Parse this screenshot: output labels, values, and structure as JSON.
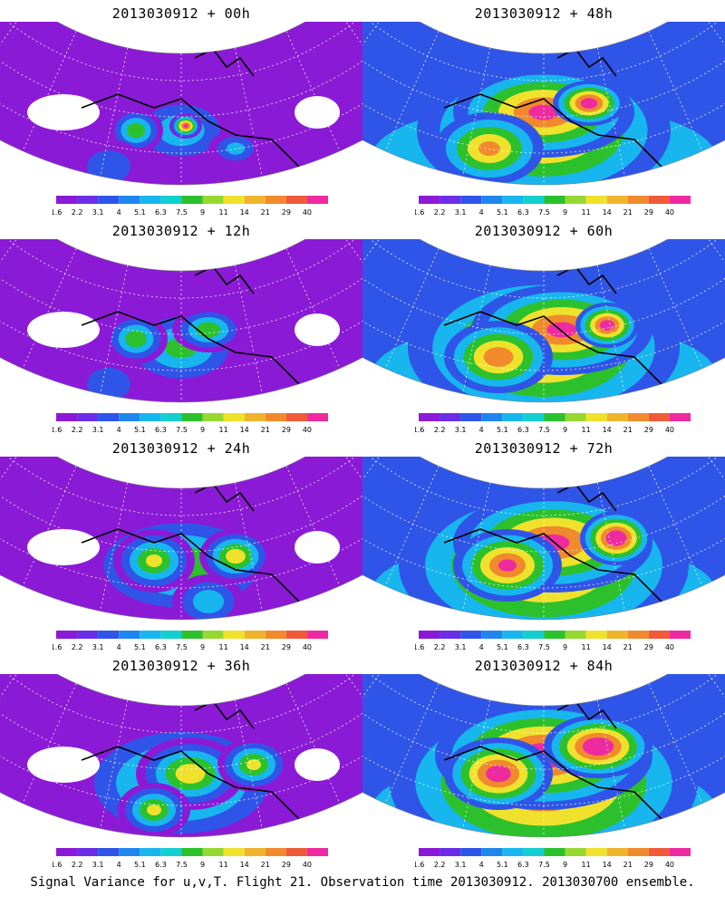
{
  "panels": [
    {
      "title": "2013030912 + 00h",
      "forecast_hour": 0
    },
    {
      "title": "2013030912 + 48h",
      "forecast_hour": 48
    },
    {
      "title": "2013030912 + 12h",
      "forecast_hour": 12
    },
    {
      "title": "2013030912 + 60h",
      "forecast_hour": 60
    },
    {
      "title": "2013030912 + 24h",
      "forecast_hour": 24
    },
    {
      "title": "2013030912 + 72h",
      "forecast_hour": 72
    },
    {
      "title": "2013030912 + 36h",
      "forecast_hour": 36
    },
    {
      "title": "2013030912 + 84h",
      "forecast_hour": 84
    }
  ],
  "colorbar": {
    "labels": [
      "1.6",
      "2.2",
      "3.1",
      "4",
      "5.1",
      "6.3",
      "7.5",
      "9",
      "11",
      "14",
      "21",
      "29",
      "40"
    ],
    "colors": [
      "#8b1ad6",
      "#6b2ee6",
      "#2f55e8",
      "#1f86ee",
      "#18b6ee",
      "#14cfcf",
      "#2cc12c",
      "#96d832",
      "#f0e22c",
      "#f0b42c",
      "#f08a2c",
      "#ee5a3a",
      "#ee2aa0"
    ]
  },
  "caption": "Signal Variance for u,v,T. Flight 21. Observation time 2013030912. 2013030700 ensemble."
}
